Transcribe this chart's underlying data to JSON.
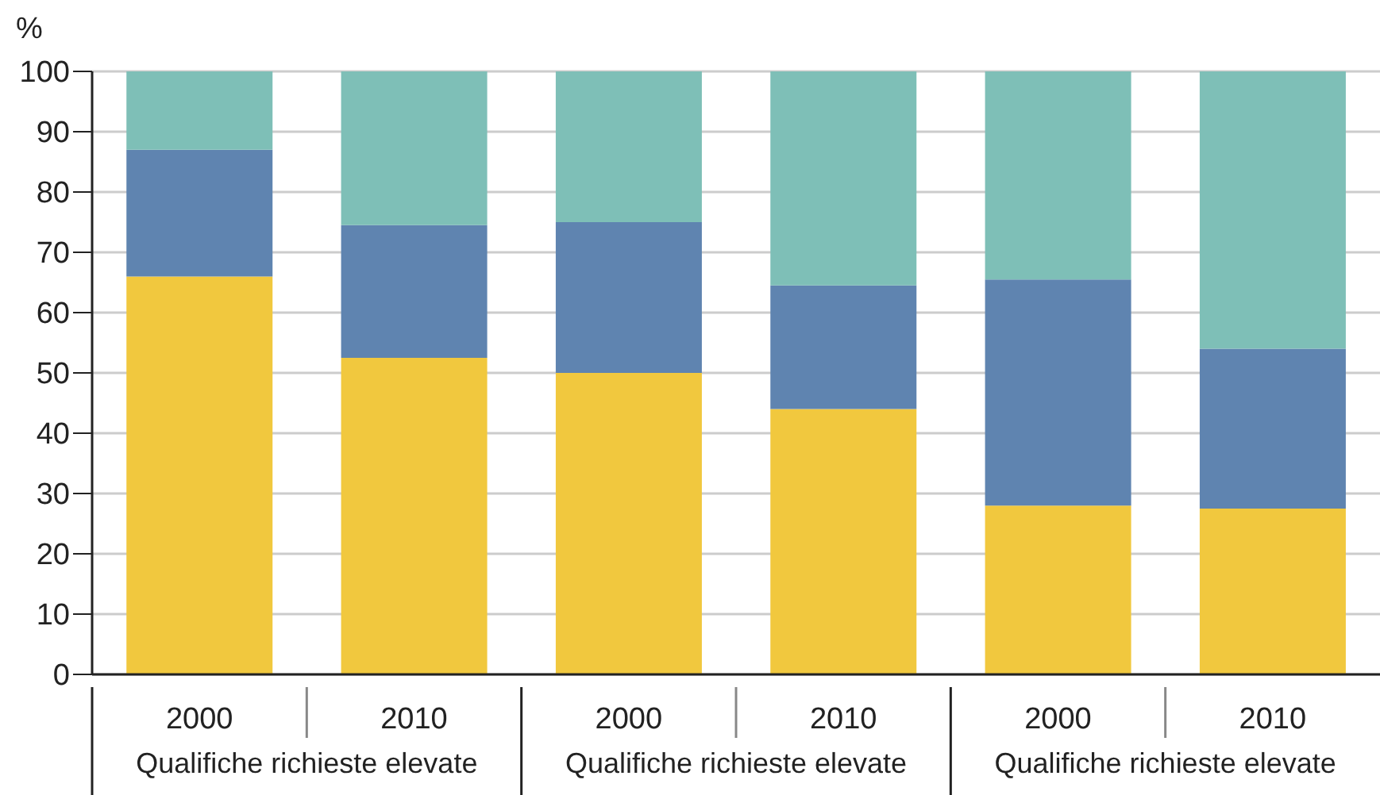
{
  "chart_data": {
    "type": "bar",
    "stacked": true,
    "ylabel": "%",
    "categories": [
      "2000",
      "2010",
      "2000",
      "2010",
      "2000",
      "2010"
    ],
    "series": [
      {
        "color": "#f1c83e",
        "values": [
          66,
          52.5,
          50,
          44,
          28,
          27.5
        ]
      },
      {
        "color": "#5f84b0",
        "values": [
          21,
          22,
          25,
          20.5,
          37.5,
          26.5
        ]
      },
      {
        "color": "#7ebfb7",
        "values": [
          13,
          25.5,
          25,
          35.5,
          34.5,
          46
        ]
      }
    ],
    "annotations": [
      "Qualifiche richieste elevate",
      "Qualifiche richieste elevate",
      "Qualifiche richieste elevate"
    ],
    "ylim": [
      0,
      100
    ],
    "yticks": [
      0,
      10,
      20,
      30,
      40,
      50,
      60,
      70,
      80,
      90,
      100
    ],
    "grid": "y"
  }
}
